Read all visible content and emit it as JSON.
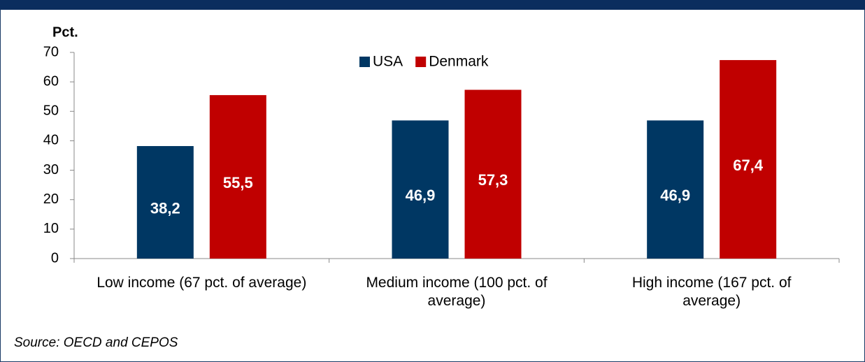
{
  "chart_data": {
    "type": "bar",
    "y_label": "Pct.",
    "categories": [
      "Low income (67 pct. of average)",
      "Medium income (100 pct. of average)",
      "High income (167 pct. of average)"
    ],
    "series": [
      {
        "name": "USA",
        "color": "#003763",
        "values": [
          38.2,
          46.9,
          46.9
        ],
        "value_labels": [
          "38,2",
          "46,9",
          "46,9"
        ]
      },
      {
        "name": "Denmark",
        "color": "#c00000",
        "values": [
          55.5,
          57.3,
          67.4
        ],
        "value_labels": [
          "55,5",
          "57,3",
          "67,4"
        ]
      }
    ],
    "ylim": [
      0,
      70
    ],
    "yticks": [
      0,
      10,
      20,
      30,
      40,
      50,
      60,
      70
    ],
    "grid": false,
    "legend": "top",
    "source": "Source: OECD and CEPOS"
  }
}
